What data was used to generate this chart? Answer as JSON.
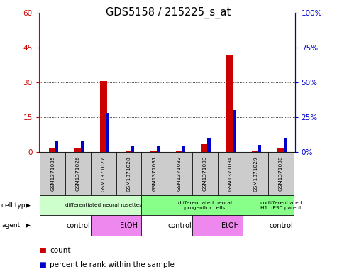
{
  "title": "GDS5158 / 215225_s_at",
  "samples": [
    "GSM1371025",
    "GSM1371026",
    "GSM1371027",
    "GSM1371028",
    "GSM1371031",
    "GSM1371032",
    "GSM1371033",
    "GSM1371034",
    "GSM1371029",
    "GSM1371030"
  ],
  "counts": [
    1.5,
    1.5,
    30.5,
    0.5,
    0.5,
    0.5,
    3.5,
    42.0,
    0.5,
    2.0
  ],
  "percentiles": [
    8,
    8,
    28,
    4,
    4,
    4,
    10,
    30,
    5,
    10
  ],
  "ylim_left": [
    0,
    60
  ],
  "ylim_right": [
    0,
    100
  ],
  "yticks_left": [
    0,
    15,
    30,
    45,
    60
  ],
  "yticks_right": [
    0,
    25,
    50,
    75,
    100
  ],
  "bar_color_red": "#cc0000",
  "bar_color_blue": "#0000cc",
  "cell_types": [
    {
      "label": "differentiated neural rosettes",
      "start": 0,
      "end": 4,
      "color": "#ccffcc"
    },
    {
      "label": "differentiated neural\nprogenitor cells",
      "start": 4,
      "end": 8,
      "color": "#88ff88"
    },
    {
      "label": "undifferentiated\nH1 hESC parent",
      "start": 8,
      "end": 10,
      "color": "#88ff88"
    }
  ],
  "agents": [
    {
      "label": "control",
      "start": 0,
      "end": 2,
      "color": "#ffffff"
    },
    {
      "label": "EtOH",
      "start": 2,
      "end": 4,
      "color": "#ee88ee"
    },
    {
      "label": "control",
      "start": 4,
      "end": 6,
      "color": "#ffffff"
    },
    {
      "label": "EtOH",
      "start": 6,
      "end": 8,
      "color": "#ee88ee"
    },
    {
      "label": "control",
      "start": 8,
      "end": 10,
      "color": "#ffffff"
    }
  ],
  "legend_count_color": "#cc0000",
  "legend_percentile_color": "#0000cc",
  "axis_label_color_left": "#cc0000",
  "axis_label_color_right": "#0000cc",
  "bg_color": "#ffffff",
  "sample_box_color": "#cccccc"
}
